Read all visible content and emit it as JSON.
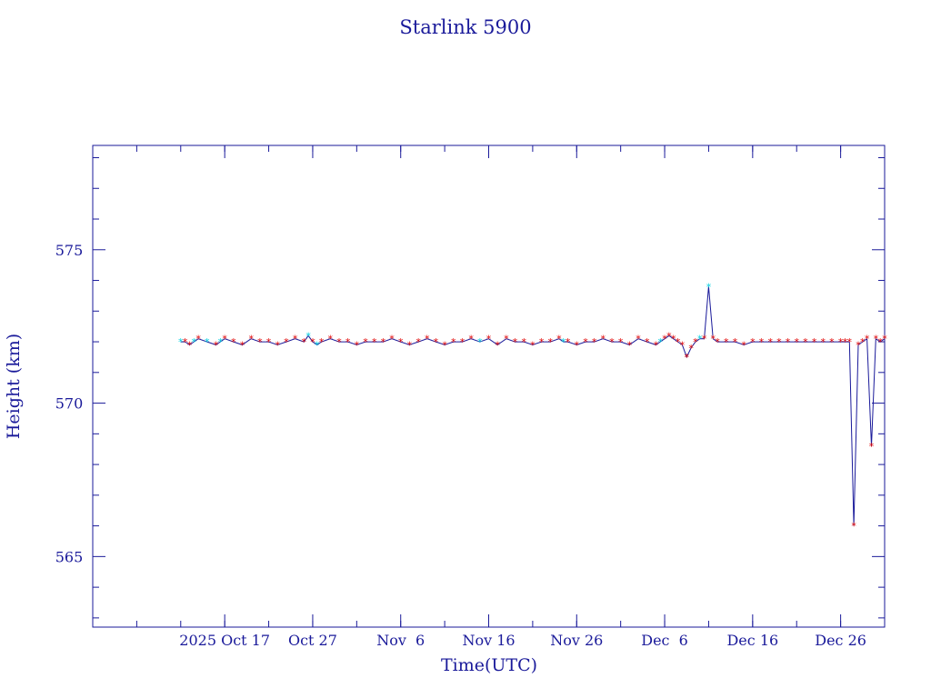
{
  "chart_data": {
    "type": "line",
    "title": "Starlink 5900",
    "xlabel": "Time(UTC)",
    "ylabel": "Height (km)",
    "x_unit": "date",
    "xlim": [
      "2025-10-02",
      "2025-12-31"
    ],
    "ylim": [
      562.7,
      578.4
    ],
    "x_ticks": [
      {
        "date": "2025-10-17",
        "label": "2025 Oct 17"
      },
      {
        "date": "2025-10-27",
        "label": "Oct 27"
      },
      {
        "date": "2025-11-06",
        "label": "Nov  6"
      },
      {
        "date": "2025-11-16",
        "label": "Nov 16"
      },
      {
        "date": "2025-11-26",
        "label": "Nov 26"
      },
      {
        "date": "2025-12-06",
        "label": "Dec  6"
      },
      {
        "date": "2025-12-16",
        "label": "Dec 16"
      },
      {
        "date": "2025-12-26",
        "label": "Dec 26"
      }
    ],
    "y_ticks": [
      565,
      570,
      575
    ],
    "grid": false,
    "colors": {
      "line": "#1a1a9a",
      "red_marker": "#e00000",
      "cyan_marker": "#00d0e0",
      "axes": "#1a1a9a"
    },
    "series": [
      {
        "values": [
          [
            "2025-10-12",
            572.0,
            "c"
          ],
          [
            "2025-10-12 12:00",
            572.0,
            "r"
          ],
          [
            "2025-10-13",
            571.9,
            "r"
          ],
          [
            "2025-10-13 12:00",
            572.0,
            "c"
          ],
          [
            "2025-10-14",
            572.1,
            "r"
          ],
          [
            "2025-10-15",
            572.0,
            "c"
          ],
          [
            "2025-10-16",
            571.9,
            "r"
          ],
          [
            "2025-10-16 12:00",
            572.0,
            "c"
          ],
          [
            "2025-10-17",
            572.1,
            "r"
          ],
          [
            "2025-10-18",
            572.0,
            "r"
          ],
          [
            "2025-10-19",
            571.9,
            "r"
          ],
          [
            "2025-10-20",
            572.1,
            "r"
          ],
          [
            "2025-10-21",
            572.0,
            "r"
          ],
          [
            "2025-10-22",
            572.0,
            "r"
          ],
          [
            "2025-10-23",
            571.9,
            "r"
          ],
          [
            "2025-10-24",
            572.0,
            "r"
          ],
          [
            "2025-10-25",
            572.1,
            "r"
          ],
          [
            "2025-10-26",
            572.0,
            "r"
          ],
          [
            "2025-10-26 12:00",
            572.2,
            "c"
          ],
          [
            "2025-10-27",
            572.0,
            "r"
          ],
          [
            "2025-10-27 12:00",
            571.9,
            "c"
          ],
          [
            "2025-10-28",
            572.0,
            "r"
          ],
          [
            "2025-10-29",
            572.1,
            "r"
          ],
          [
            "2025-10-30",
            572.0,
            "r"
          ],
          [
            "2025-10-31",
            572.0,
            "r"
          ],
          [
            "2025-11-01",
            571.9,
            "r"
          ],
          [
            "2025-11-02",
            572.0,
            "r"
          ],
          [
            "2025-11-03",
            572.0,
            "r"
          ],
          [
            "2025-11-04",
            572.0,
            "r"
          ],
          [
            "2025-11-05",
            572.1,
            "r"
          ],
          [
            "2025-11-06",
            572.0,
            "r"
          ],
          [
            "2025-11-07",
            571.9,
            "r"
          ],
          [
            "2025-11-08",
            572.0,
            "r"
          ],
          [
            "2025-11-09",
            572.1,
            "r"
          ],
          [
            "2025-11-10",
            572.0,
            "r"
          ],
          [
            "2025-11-11",
            571.9,
            "r"
          ],
          [
            "2025-11-12",
            572.0,
            "r"
          ],
          [
            "2025-11-13",
            572.0,
            "r"
          ],
          [
            "2025-11-14",
            572.1,
            "r"
          ],
          [
            "2025-11-15",
            572.0,
            "c"
          ],
          [
            "2025-11-16",
            572.1,
            "r"
          ],
          [
            "2025-11-17",
            571.9,
            "r"
          ],
          [
            "2025-11-18",
            572.1,
            "r"
          ],
          [
            "2025-11-19",
            572.0,
            "r"
          ],
          [
            "2025-11-20",
            572.0,
            "r"
          ],
          [
            "2025-11-21",
            571.9,
            "r"
          ],
          [
            "2025-11-22",
            572.0,
            "r"
          ],
          [
            "2025-11-23",
            572.0,
            "r"
          ],
          [
            "2025-11-24",
            572.1,
            "r"
          ],
          [
            "2025-11-24 12:00",
            572.0,
            "c"
          ],
          [
            "2025-11-25",
            572.0,
            "r"
          ],
          [
            "2025-11-26",
            571.9,
            "r"
          ],
          [
            "2025-11-27",
            572.0,
            "r"
          ],
          [
            "2025-11-28",
            572.0,
            "r"
          ],
          [
            "2025-11-29",
            572.1,
            "r"
          ],
          [
            "2025-11-30",
            572.0,
            "r"
          ],
          [
            "2025-12-01",
            572.0,
            "r"
          ],
          [
            "2025-12-02",
            571.9,
            "r"
          ],
          [
            "2025-12-03",
            572.1,
            "r"
          ],
          [
            "2025-12-04",
            572.0,
            "r"
          ],
          [
            "2025-12-05",
            571.9,
            "r"
          ],
          [
            "2025-12-05 12:00",
            572.0,
            "c"
          ],
          [
            "2025-12-06",
            572.1,
            "r"
          ],
          [
            "2025-12-06 12:00",
            572.2,
            "r"
          ],
          [
            "2025-12-07",
            572.1,
            "r"
          ],
          [
            "2025-12-07 12:00",
            572.0,
            "r"
          ],
          [
            "2025-12-08",
            571.9,
            "r"
          ],
          [
            "2025-12-08 12:00",
            571.5,
            "r"
          ],
          [
            "2025-12-09",
            571.8,
            "r"
          ],
          [
            "2025-12-09 12:00",
            572.0,
            "r"
          ],
          [
            "2025-12-10",
            572.1,
            "c"
          ],
          [
            "2025-12-10 12:00",
            572.1,
            "r"
          ],
          [
            "2025-12-11",
            573.8,
            "c"
          ],
          [
            "2025-12-11 12:00",
            572.1,
            "r"
          ],
          [
            "2025-12-12",
            572.0,
            "r"
          ],
          [
            "2025-12-13",
            572.0,
            "r"
          ],
          [
            "2025-12-14",
            572.0,
            "r"
          ],
          [
            "2025-12-15",
            571.9,
            "r"
          ],
          [
            "2025-12-16",
            572.0,
            "r"
          ],
          [
            "2025-12-17",
            572.0,
            "r"
          ],
          [
            "2025-12-18",
            572.0,
            "r"
          ],
          [
            "2025-12-19",
            572.0,
            "r"
          ],
          [
            "2025-12-20",
            572.0,
            "r"
          ],
          [
            "2025-12-21",
            572.0,
            "r"
          ],
          [
            "2025-12-22",
            572.0,
            "r"
          ],
          [
            "2025-12-23",
            572.0,
            "r"
          ],
          [
            "2025-12-24",
            572.0,
            "r"
          ],
          [
            "2025-12-25",
            572.0,
            "r"
          ],
          [
            "2025-12-26",
            572.0,
            "r"
          ],
          [
            "2025-12-26 12:00",
            572.0,
            "r"
          ],
          [
            "2025-12-27",
            572.0,
            "r"
          ],
          [
            "2025-12-27 12:00",
            566.0,
            "r"
          ],
          [
            "2025-12-28",
            571.9,
            "r"
          ],
          [
            "2025-12-28 12:00",
            572.0,
            "r"
          ],
          [
            "2025-12-29",
            572.1,
            "r"
          ],
          [
            "2025-12-29 12:00",
            568.6,
            "r"
          ],
          [
            "2025-12-30",
            572.1,
            "r"
          ],
          [
            "2025-12-30 12:00",
            572.0,
            "r"
          ],
          [
            "2025-12-31",
            572.1,
            "r"
          ]
        ]
      }
    ]
  }
}
